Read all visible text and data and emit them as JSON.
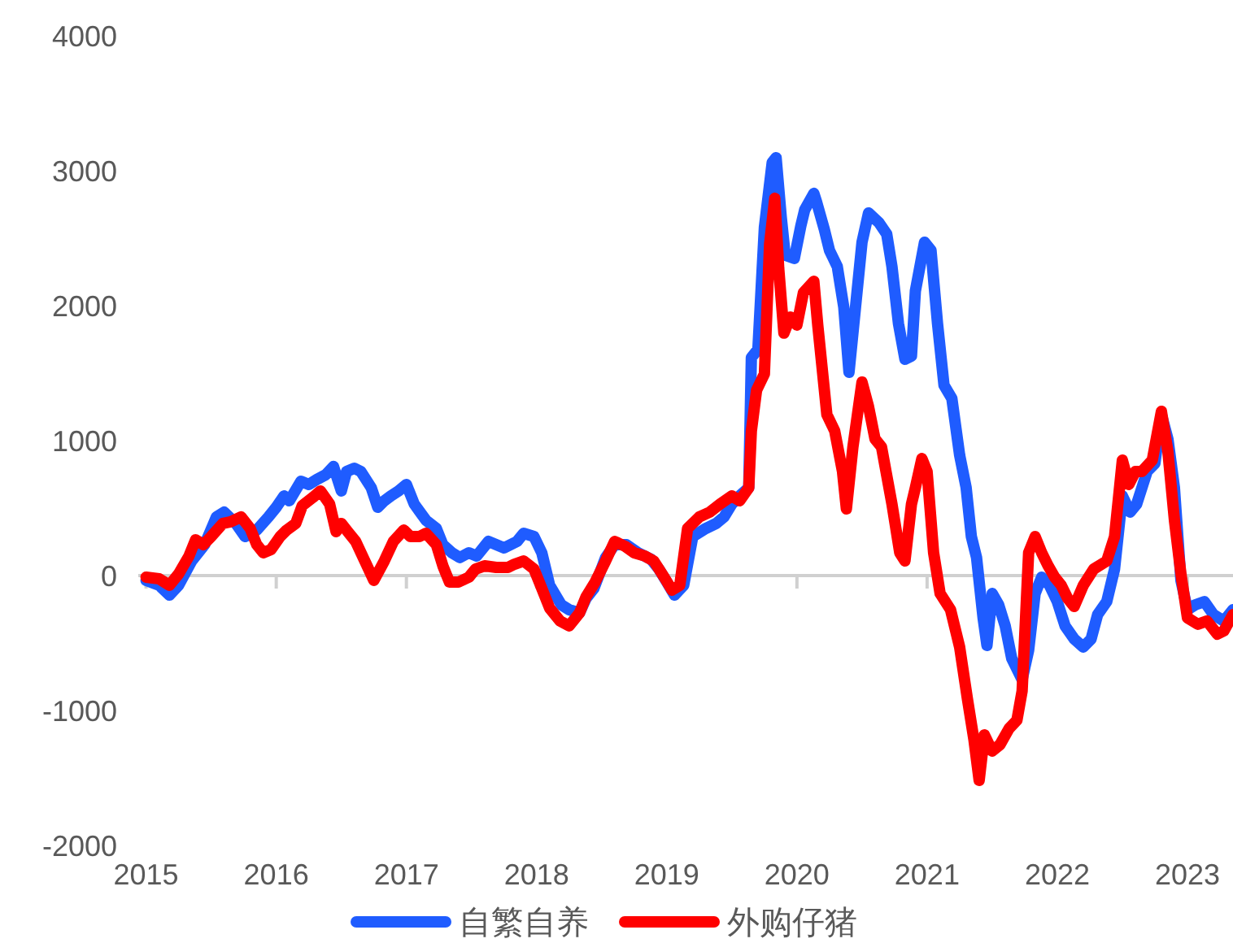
{
  "chart_data": {
    "type": "line",
    "xlim": [
      2014.94,
      2023.35
    ],
    "xticks": [
      2015,
      2016,
      2017,
      2018,
      2019,
      2020,
      2021,
      2022,
      2023
    ],
    "ylim": [
      -2000,
      4000
    ],
    "yticks": [
      -2000,
      -1000,
      0,
      1000,
      2000,
      3000,
      4000
    ],
    "ref_lines": [
      {
        "axis": "y",
        "value": 0,
        "color": "#d0d0d0"
      }
    ],
    "legend": "bottom",
    "line_style": "solid",
    "marker": "none",
    "series": [
      {
        "name": "自繁自养",
        "color": "#1f5cff",
        "x": [
          2015.0,
          2015.1,
          2015.18,
          2015.25,
          2015.35,
          2015.45,
          2015.54,
          2015.6,
          2015.69,
          2015.76,
          2015.85,
          2015.94,
          2016.0,
          2016.06,
          2016.1,
          2016.19,
          2016.25,
          2016.31,
          2016.38,
          2016.44,
          2016.5,
          2016.54,
          2016.6,
          2016.65,
          2016.73,
          2016.78,
          2016.83,
          2016.88,
          2016.94,
          2017.0,
          2017.06,
          2017.15,
          2017.23,
          2017.28,
          2017.35,
          2017.41,
          2017.48,
          2017.54,
          2017.63,
          2017.69,
          2017.75,
          2017.85,
          2017.9,
          2017.98,
          2018.04,
          2018.1,
          2018.19,
          2018.25,
          2018.33,
          2018.38,
          2018.44,
          2018.53,
          2018.6,
          2018.69,
          2018.78,
          2018.88,
          2018.94,
          2019.0,
          2019.06,
          2019.13,
          2019.2,
          2019.3,
          2019.38,
          2019.44,
          2019.5,
          2019.56,
          2019.63,
          2019.65,
          2019.7,
          2019.75,
          2019.81,
          2019.84,
          2019.88,
          2019.91,
          2019.98,
          2020.03,
          2020.06,
          2020.13,
          2020.15,
          2020.21,
          2020.25,
          2020.31,
          2020.36,
          2020.4,
          2020.45,
          2020.5,
          2020.55,
          2020.63,
          2020.69,
          2020.73,
          2020.78,
          2020.83,
          2020.88,
          2020.91,
          2020.98,
          2021.03,
          2021.08,
          2021.13,
          2021.19,
          2021.25,
          2021.3,
          2021.34,
          2021.38,
          2021.43,
          2021.46,
          2021.5,
          2021.55,
          2021.6,
          2021.65,
          2021.73,
          2021.78,
          2021.83,
          2021.88,
          2021.94,
          2022.0,
          2022.06,
          2022.13,
          2022.2,
          2022.26,
          2022.31,
          2022.38,
          2022.44,
          2022.5,
          2022.56,
          2022.61,
          2022.69,
          2022.75,
          2022.8,
          2022.85,
          2022.9,
          2022.95,
          2023.0,
          2023.06,
          2023.13,
          2023.2,
          2023.28,
          2023.35
        ],
        "values": [
          -36,
          -72,
          -145,
          -72,
          108,
          229,
          434,
          470,
          386,
          289,
          337,
          434,
          506,
          590,
          554,
          699,
          675,
          711,
          747,
          808,
          627,
          771,
          795,
          771,
          651,
          506,
          554,
          590,
          627,
          675,
          530,
          410,
          349,
          229,
          169,
          133,
          169,
          145,
          253,
          229,
          205,
          253,
          313,
          289,
          169,
          -72,
          -217,
          -253,
          -277,
          -169,
          -96,
          133,
          229,
          229,
          169,
          120,
          48,
          -48,
          -145,
          -72,
          289,
          349,
          386,
          434,
          530,
          590,
          651,
          1615,
          1675,
          2579,
          3061,
          3097,
          2651,
          2374,
          2350,
          2591,
          2711,
          2832,
          2772,
          2567,
          2410,
          2290,
          1988,
          1506,
          1988,
          2470,
          2687,
          2615,
          2530,
          2290,
          1868,
          1603,
          1627,
          2109,
          2470,
          2410,
          1868,
          1410,
          1313,
          892,
          651,
          289,
          133,
          -313,
          -518,
          -133,
          -217,
          -373,
          -614,
          -771,
          -554,
          -133,
          -12,
          -72,
          -193,
          -373,
          -470,
          -530,
          -470,
          -289,
          -193,
          48,
          590,
          470,
          530,
          771,
          831,
          1193,
          1012,
          651,
          -36,
          -253,
          -217,
          -193,
          -289,
          -337,
          -253
        ]
      },
      {
        "name": "外购仔猪",
        "color": "#ff0000",
        "x": [
          2015.0,
          2015.1,
          2015.18,
          2015.25,
          2015.33,
          2015.38,
          2015.44,
          2015.5,
          2015.59,
          2015.65,
          2015.73,
          2015.8,
          2015.85,
          2015.9,
          2015.96,
          2016.03,
          2016.08,
          2016.15,
          2016.2,
          2016.28,
          2016.34,
          2016.41,
          2016.46,
          2016.5,
          2016.55,
          2016.61,
          2016.68,
          2016.75,
          2016.83,
          2016.9,
          2016.98,
          2017.03,
          2017.1,
          2017.15,
          2017.23,
          2017.28,
          2017.33,
          2017.4,
          2017.48,
          2017.53,
          2017.6,
          2017.69,
          2017.78,
          2017.83,
          2017.9,
          2017.98,
          2018.03,
          2018.1,
          2018.18,
          2018.25,
          2018.33,
          2018.38,
          2018.45,
          2018.53,
          2018.6,
          2018.68,
          2018.75,
          2018.83,
          2018.9,
          2018.98,
          2019.04,
          2019.1,
          2019.16,
          2019.25,
          2019.33,
          2019.41,
          2019.5,
          2019.56,
          2019.63,
          2019.65,
          2019.69,
          2019.75,
          2019.79,
          2019.83,
          2019.86,
          2019.9,
          2019.95,
          2020.0,
          2020.05,
          2020.13,
          2020.16,
          2020.23,
          2020.29,
          2020.35,
          2020.38,
          2020.43,
          2020.5,
          2020.55,
          2020.6,
          2020.65,
          2020.73,
          2020.79,
          2020.83,
          2020.88,
          2020.91,
          2020.96,
          2021.0,
          2021.05,
          2021.1,
          2021.18,
          2021.25,
          2021.31,
          2021.36,
          2021.4,
          2021.44,
          2021.5,
          2021.56,
          2021.63,
          2021.69,
          2021.73,
          2021.78,
          2021.83,
          2021.88,
          2021.93,
          2021.98,
          2022.03,
          2022.08,
          2022.13,
          2022.2,
          2022.28,
          2022.38,
          2022.44,
          2022.5,
          2022.55,
          2022.6,
          2022.65,
          2022.73,
          2022.8,
          2022.85,
          2022.9,
          2022.95,
          2023.0,
          2023.08,
          2023.15,
          2023.23,
          2023.28,
          2023.35
        ],
        "values": [
          -12,
          -24,
          -72,
          12,
          145,
          265,
          229,
          289,
          386,
          398,
          434,
          349,
          229,
          169,
          193,
          289,
          337,
          386,
          518,
          578,
          627,
          530,
          325,
          386,
          325,
          253,
          108,
          -36,
          108,
          253,
          337,
          289,
          289,
          313,
          229,
          72,
          -48,
          -48,
          -12,
          48,
          72,
          60,
          60,
          84,
          108,
          48,
          -72,
          -241,
          -337,
          -373,
          -277,
          -157,
          -48,
          108,
          253,
          217,
          169,
          145,
          108,
          -12,
          -108,
          -72,
          349,
          434,
          470,
          530,
          590,
          554,
          651,
          1072,
          1374,
          1494,
          2458,
          2796,
          2278,
          1796,
          1916,
          1856,
          2097,
          2181,
          1856,
          1193,
          1072,
          771,
          494,
          952,
          1434,
          1253,
          1012,
          952,
          530,
          169,
          108,
          530,
          651,
          867,
          771,
          169,
          -133,
          -253,
          -530,
          -916,
          -1217,
          -1518,
          -1181,
          -1301,
          -1253,
          -1133,
          -1072,
          -855,
          169,
          289,
          169,
          72,
          -12,
          -72,
          -169,
          -229,
          -72,
          48,
          108,
          289,
          855,
          675,
          771,
          771,
          855,
          1217,
          916,
          410,
          12,
          -313,
          -361,
          -337,
          -434,
          -410,
          -289
        ]
      }
    ]
  }
}
